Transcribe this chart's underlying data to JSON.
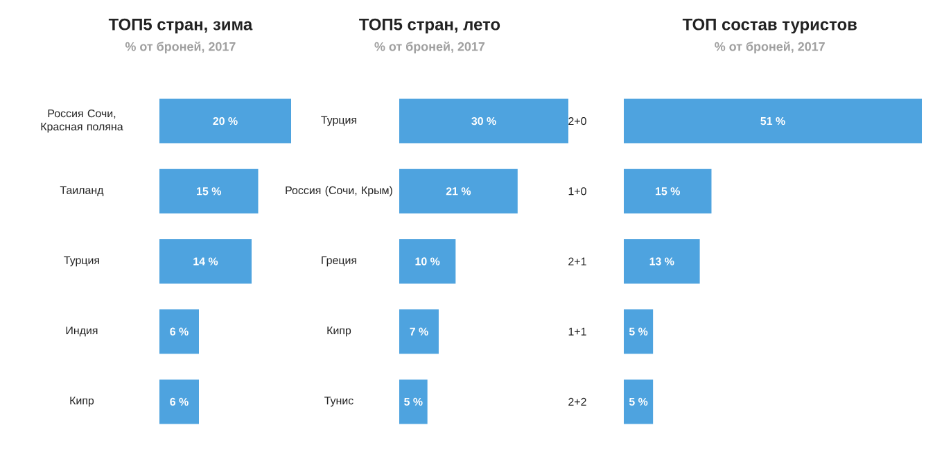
{
  "chart_data": [
    {
      "type": "bar",
      "orientation": "horizontal",
      "title": "ТОП5 стран, зима",
      "subtitle": "% от броней, 2017",
      "categories": [
        "Россия Сочи, Красная поляна",
        "Таиланд",
        "Турция",
        "Индия",
        "Кипр"
      ],
      "values": [
        20,
        15,
        14,
        6,
        6
      ],
      "value_labels": [
        "20 %",
        "15 %",
        "14 %",
        "6 %",
        "6 %"
      ],
      "color": "#4ea3df"
    },
    {
      "type": "bar",
      "orientation": "horizontal",
      "title": "ТОП5 стран, лето",
      "subtitle": "% от броней, 2017",
      "categories": [
        "Турция",
        "Россия (Сочи, Крым)",
        "Греция",
        "Кипр",
        "Тунис"
      ],
      "values": [
        30,
        21,
        10,
        7,
        5
      ],
      "value_labels": [
        "30 %",
        "21 %",
        "10 %",
        "7 %",
        "5 %"
      ],
      "color": "#4ea3df"
    },
    {
      "type": "bar",
      "orientation": "horizontal",
      "title": "ТОП состав туристов",
      "subtitle": "% от броней, 2017",
      "categories": [
        "2+0",
        "1+0",
        "2+1",
        "1+1",
        "2+2"
      ],
      "values": [
        51,
        15,
        13,
        5,
        5
      ],
      "value_labels": [
        "51 %",
        "15 %",
        "13 %",
        "5 %",
        "5 %"
      ],
      "color": "#4ea3df"
    }
  ]
}
